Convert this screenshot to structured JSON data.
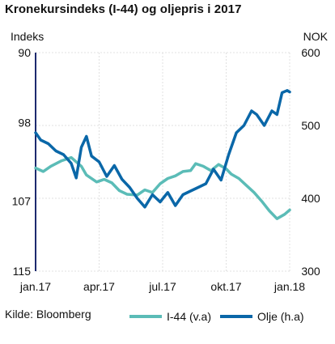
{
  "chart_data": {
    "type": "line",
    "title": "Kronekursindeks (I-44) og oljepris i 2017",
    "left_axis_unit": "Indeks",
    "right_axis_unit": "NOK",
    "left_axis": {
      "range": [
        90,
        115
      ],
      "inverted": true,
      "ticks": [
        "90",
        "98",
        "107",
        "115"
      ],
      "tick_values": [
        90,
        98,
        107,
        115
      ]
    },
    "right_axis": {
      "range": [
        300,
        600
      ],
      "ticks": [
        "600",
        "500",
        "400",
        "300"
      ],
      "tick_values": [
        600,
        500,
        400,
        300
      ]
    },
    "x_ticks": [
      "jan.17",
      "apr.17",
      "jul.17",
      "okt.17",
      "jan.18"
    ],
    "grid": true,
    "legend_position": "bottom-right",
    "source": "Kilde: Bloomberg",
    "series": [
      {
        "name": "I-44 (v.a)",
        "axis": "left",
        "color": "#5bbcb7",
        "x": [
          0.0,
          0.03,
          0.06,
          0.1,
          0.14,
          0.18,
          0.2,
          0.24,
          0.27,
          0.3,
          0.33,
          0.36,
          0.4,
          0.43,
          0.46,
          0.49,
          0.52,
          0.55,
          0.58,
          0.61,
          0.63,
          0.66,
          0.69,
          0.72,
          0.75,
          0.77,
          0.8,
          0.83,
          0.86,
          0.89,
          0.92,
          0.95,
          0.98,
          1.0
        ],
        "values": [
          103.2,
          103.6,
          103.0,
          102.4,
          102.0,
          103.0,
          104.0,
          104.8,
          104.5,
          104.9,
          105.8,
          106.2,
          106.3,
          105.7,
          106.0,
          105.0,
          104.4,
          104.1,
          103.6,
          103.5,
          102.7,
          103.0,
          103.5,
          102.8,
          103.3,
          103.9,
          104.4,
          105.2,
          106.0,
          107.0,
          108.1,
          109.0,
          108.5,
          108.0
        ]
      },
      {
        "name": "Olje (h.a)",
        "axis": "right",
        "color": "#0a67a8",
        "x": [
          0.0,
          0.02,
          0.05,
          0.08,
          0.11,
          0.14,
          0.16,
          0.18,
          0.2,
          0.22,
          0.25,
          0.28,
          0.31,
          0.34,
          0.37,
          0.4,
          0.43,
          0.46,
          0.49,
          0.52,
          0.55,
          0.58,
          0.61,
          0.64,
          0.67,
          0.7,
          0.73,
          0.76,
          0.79,
          0.82,
          0.85,
          0.87,
          0.9,
          0.93,
          0.95,
          0.97,
          0.99,
          1.0
        ],
        "values": [
          490,
          480,
          475,
          465,
          460,
          448,
          428,
          470,
          485,
          458,
          450,
          430,
          445,
          426,
          415,
          400,
          388,
          405,
          395,
          408,
          390,
          405,
          410,
          415,
          420,
          440,
          425,
          460,
          490,
          500,
          520,
          515,
          500,
          520,
          515,
          545,
          548,
          546
        ]
      }
    ]
  }
}
